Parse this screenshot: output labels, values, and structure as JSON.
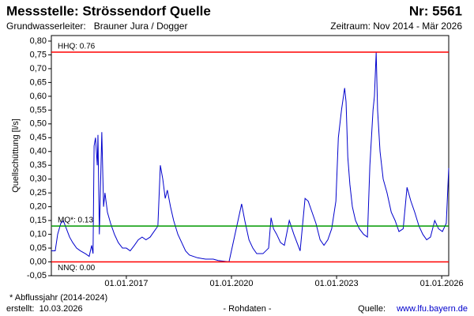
{
  "chart_data": {
    "type": "line",
    "title": "Messstelle: Strössendorf Quelle",
    "id_label": "Nr: 5561",
    "subtitle": "Grundwasserleiter:   Brauner Jura / Dogger",
    "period": "Zeitraum: Nov 2014 - Mär 2026",
    "y_label": "Quellschüttung [l/s]",
    "footnote": "* Abflussjahr (2014-2024)",
    "created": "erstellt:  10.03.2026",
    "data_note": "- Rohdaten -",
    "source_label": "Quelle:",
    "source_url": "www.lfu.bayern.de",
    "color": "#0000cc",
    "xlim": [
      2014.86,
      2026.2
    ],
    "xticks": [
      {
        "value": 2017,
        "label": "01.01.2017"
      },
      {
        "value": 2020,
        "label": "01.01.2020"
      },
      {
        "value": 2023,
        "label": "01.01.2023"
      },
      {
        "value": 2026,
        "label": "01.01.2026"
      }
    ],
    "ylim": [
      -0.05,
      0.82
    ],
    "yticks": [
      {
        "value": -0.05,
        "label": "-0,05"
      },
      {
        "value": 0,
        "label": "0,00"
      },
      {
        "value": 0.05,
        "label": "0,05"
      },
      {
        "value": 0.1,
        "label": "0,10"
      },
      {
        "value": 0.15,
        "label": "0,15"
      },
      {
        "value": 0.2,
        "label": "0,20"
      },
      {
        "value": 0.25,
        "label": "0,25"
      },
      {
        "value": 0.3,
        "label": "0,30"
      },
      {
        "value": 0.35,
        "label": "0,35"
      },
      {
        "value": 0.4,
        "label": "0,40"
      },
      {
        "value": 0.45,
        "label": "0,45"
      },
      {
        "value": 0.5,
        "label": "0,50"
      },
      {
        "value": 0.55,
        "label": "0,55"
      },
      {
        "value": 0.6,
        "label": "0,60"
      },
      {
        "value": 0.65,
        "label": "0,65"
      },
      {
        "value": 0.7,
        "label": "0,70"
      },
      {
        "value": 0.75,
        "label": "0,75"
      },
      {
        "value": 0.8,
        "label": "0,80"
      }
    ],
    "grid": false,
    "reference_lines": [
      {
        "label": "HHQ: 0.76",
        "value": 0.76,
        "color": "#ff0000",
        "label_position": "above"
      },
      {
        "label": "MQ*: 0.13",
        "value": 0.13,
        "color": "#009900",
        "label_position": "above"
      },
      {
        "label": "NNQ: 0.00",
        "value": 0,
        "color": "#ff0000",
        "label_position": "below"
      }
    ],
    "x": [
      2014.86,
      2014.97,
      2015.04,
      2015.13,
      2015.2,
      2015.29,
      2015.38,
      2015.47,
      2015.58,
      2015.69,
      2015.83,
      2015.94,
      2016.01,
      2016.05,
      2016.08,
      2016.12,
      2016.17,
      2016.19,
      2016.23,
      2016.3,
      2016.35,
      2016.39,
      2016.46,
      2016.55,
      2016.66,
      2016.77,
      2016.89,
      2017.0,
      2017.11,
      2017.23,
      2017.34,
      2017.45,
      2017.56,
      2017.68,
      2017.79,
      2017.9,
      2017.97,
      2018.04,
      2018.11,
      2018.17,
      2018.26,
      2018.35,
      2018.47,
      2018.58,
      2018.69,
      2018.8,
      2019.03,
      2019.26,
      2019.48,
      2019.62,
      2019.93,
      2020.29,
      2020.38,
      2020.5,
      2020.61,
      2020.72,
      2020.9,
      2021.06,
      2021.13,
      2021.2,
      2021.29,
      2021.4,
      2021.51,
      2021.65,
      2021.78,
      2021.96,
      2022.1,
      2022.19,
      2022.3,
      2022.41,
      2022.53,
      2022.64,
      2022.75,
      2022.86,
      2022.98,
      2023.05,
      2023.14,
      2023.23,
      2023.27,
      2023.32,
      2023.38,
      2023.45,
      2023.54,
      2023.65,
      2023.77,
      2023.88,
      2023.95,
      2024.04,
      2024.08,
      2024.13,
      2024.17,
      2024.24,
      2024.33,
      2024.44,
      2024.56,
      2024.67,
      2024.78,
      2024.9,
      2025.01,
      2025.12,
      2025.23,
      2025.35,
      2025.46,
      2025.57,
      2025.68,
      2025.8,
      2025.91,
      2026.02,
      2026.13,
      2026.2
    ],
    "values": [
      0.04,
      0.04,
      0.1,
      0.14,
      0.15,
      0.12,
      0.09,
      0.07,
      0.05,
      0.04,
      0.03,
      0.02,
      0.06,
      0.03,
      0.42,
      0.45,
      0.35,
      0.46,
      0.1,
      0.47,
      0.2,
      0.25,
      0.18,
      0.14,
      0.1,
      0.07,
      0.05,
      0.05,
      0.04,
      0.06,
      0.08,
      0.09,
      0.08,
      0.09,
      0.11,
      0.13,
      0.35,
      0.3,
      0.23,
      0.26,
      0.2,
      0.15,
      0.1,
      0.07,
      0.04,
      0.025,
      0.015,
      0.01,
      0.01,
      0.005,
      0,
      0.21,
      0.15,
      0.08,
      0.05,
      0.03,
      0.03,
      0.05,
      0.16,
      0.12,
      0.1,
      0.07,
      0.06,
      0.15,
      0.1,
      0.04,
      0.23,
      0.22,
      0.18,
      0.14,
      0.08,
      0.06,
      0.08,
      0.12,
      0.22,
      0.45,
      0.55,
      0.63,
      0.58,
      0.38,
      0.28,
      0.2,
      0.15,
      0.12,
      0.1,
      0.09,
      0.35,
      0.55,
      0.6,
      0.76,
      0.55,
      0.4,
      0.3,
      0.25,
      0.18,
      0.15,
      0.11,
      0.12,
      0.27,
      0.22,
      0.18,
      0.13,
      0.1,
      0.08,
      0.09,
      0.15,
      0.12,
      0.11,
      0.14,
      0.34
    ]
  }
}
